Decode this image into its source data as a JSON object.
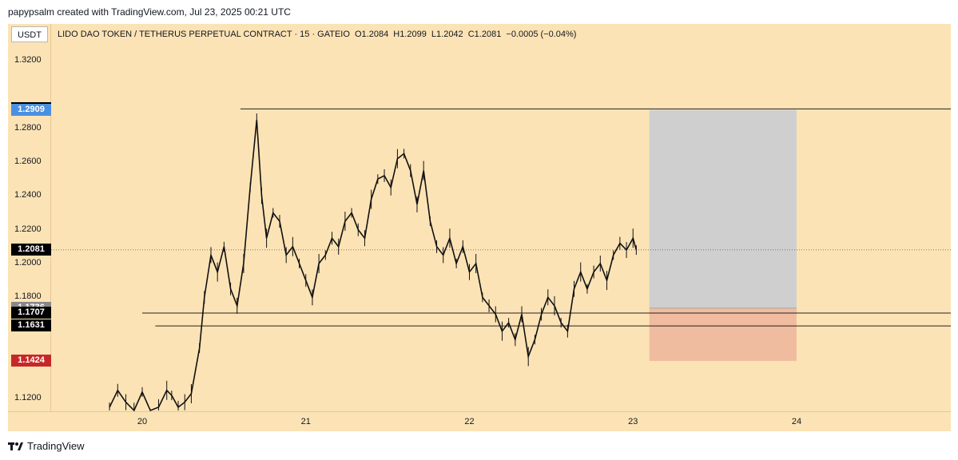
{
  "header": {
    "caption": "papypsalm created with TradingView.com, Jul 23, 2025 00:21 UTC"
  },
  "toolbar": {
    "currency": "USDT"
  },
  "legend": {
    "title": "LIDO DAO TOKEN / TETHERUS PERPETUAL CONTRACT · 15 · GATEIO",
    "open": "O1.2084",
    "high": "H1.2099",
    "low": "L1.2042",
    "close": "C1.2081",
    "change": "−0.0005 (−0.04%)"
  },
  "price_tags": [
    {
      "label": "1.2915",
      "value": 1.2915,
      "color": "#000000"
    },
    {
      "label": "1.2909",
      "value": 1.2909,
      "color": "#4a90e2"
    },
    {
      "label": "1.2081",
      "value": 1.2081,
      "color": "#000000"
    },
    {
      "label": "1.1736",
      "value": 1.1736,
      "color": "#888888"
    },
    {
      "label": "1.1707",
      "value": 1.1707,
      "color": "#000000"
    },
    {
      "label": "1.1631",
      "value": 1.1631,
      "color": "#000000"
    },
    {
      "label": "1.1424",
      "value": 1.1424,
      "color": "#c62828"
    }
  ],
  "footer": {
    "brand": "TradingView"
  },
  "chart_data": {
    "type": "line",
    "title": "LIDO DAO TOKEN / TETHERUS PERPETUAL CONTRACT · 15 · GATEIO",
    "ylim": [
      1.11,
      1.335
    ],
    "xlim": [
      19.44,
      25.0
    ],
    "y_ticks": [
      "1.3200",
      "1.2800",
      "1.2600",
      "1.2400",
      "1.2200",
      "1.2000",
      "1.1800",
      "1.1200"
    ],
    "y_tick_values": [
      1.32,
      1.28,
      1.26,
      1.24,
      1.22,
      1.2,
      1.18,
      1.12
    ],
    "x_ticks": [
      "20",
      "21",
      "22",
      "23",
      "24"
    ],
    "x_tick_values": [
      20,
      21,
      22,
      23,
      24
    ],
    "series": [
      {
        "x": [
          19.8,
          19.85,
          19.9,
          19.95,
          20.0,
          20.05,
          20.1,
          20.15,
          20.18,
          20.22,
          20.26,
          20.3,
          20.35,
          20.38,
          20.42,
          20.46,
          20.5,
          20.54,
          20.58,
          20.62,
          20.66,
          20.7,
          20.73,
          20.76,
          20.8,
          20.84,
          20.88,
          20.92,
          20.96,
          21.0,
          21.04,
          21.08,
          21.12,
          21.16,
          21.2,
          21.24,
          21.28,
          21.32,
          21.36,
          21.4,
          21.44,
          21.48,
          21.52,
          21.56,
          21.6,
          21.64,
          21.68,
          21.72,
          21.76,
          21.8,
          21.84,
          21.88,
          21.92,
          21.96,
          22.0,
          22.04,
          22.08,
          22.12,
          22.16,
          22.2,
          22.24,
          22.28,
          22.32,
          22.36,
          22.4,
          22.44,
          22.48,
          22.52,
          22.56,
          22.6,
          22.64,
          22.68,
          22.72,
          22.76,
          22.8,
          22.84,
          22.88,
          22.92,
          22.96,
          23.0,
          23.02
        ],
        "values": [
          1.115,
          1.125,
          1.118,
          1.112,
          1.124,
          1.11,
          1.115,
          1.125,
          1.122,
          1.115,
          1.118,
          1.123,
          1.15,
          1.18,
          1.205,
          1.195,
          1.21,
          1.185,
          1.175,
          1.2,
          1.245,
          1.285,
          1.24,
          1.215,
          1.23,
          1.225,
          1.205,
          1.21,
          1.2,
          1.19,
          1.18,
          1.2,
          1.205,
          1.215,
          1.21,
          1.225,
          1.23,
          1.22,
          1.215,
          1.238,
          1.25,
          1.252,
          1.245,
          1.262,
          1.265,
          1.255,
          1.235,
          1.255,
          1.225,
          1.21,
          1.205,
          1.215,
          1.2,
          1.21,
          1.195,
          1.2,
          1.18,
          1.175,
          1.17,
          1.16,
          1.165,
          1.155,
          1.17,
          1.145,
          1.155,
          1.17,
          1.18,
          1.175,
          1.165,
          1.16,
          1.185,
          1.195,
          1.185,
          1.195,
          1.2,
          1.19,
          1.205,
          1.212,
          1.208,
          1.215,
          1.208
        ]
      }
    ],
    "horizontal_lines": [
      {
        "y": 1.2915,
        "from_x": 20.6
      },
      {
        "y": 1.1707,
        "from_x": 20.0
      },
      {
        "y": 1.1631,
        "from_x": 20.08
      },
      {
        "y": 1.2081,
        "from_x": 19.44
      }
    ],
    "position_tool": {
      "from_x": 23.1,
      "to_x": 24.0,
      "profit_top": 1.2909,
      "entry": 1.1736,
      "stop": 1.1424,
      "profit_color": "#cfcfcf",
      "loss_color": "#f0bca0"
    },
    "grid": false
  }
}
